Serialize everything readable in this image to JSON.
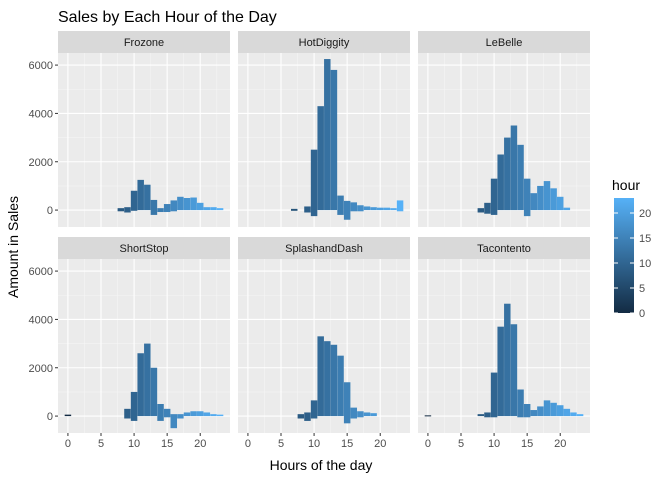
{
  "chart_data": {
    "type": "bar",
    "title": "Sales by Each Hour of the Day",
    "xlabel": "Hours of the day",
    "ylabel": "Amount in Sales",
    "xlim": [
      -1.5,
      24.5
    ],
    "ylim": [
      -700,
      6500
    ],
    "x_ticks": [
      0,
      5,
      10,
      15,
      20
    ],
    "y_ticks": [
      0,
      2000,
      4000,
      6000
    ],
    "grid": true,
    "legend": {
      "title": "hour",
      "position": "right",
      "ticks": [
        0,
        5,
        10,
        15,
        20
      ],
      "range": [
        0,
        23
      ],
      "color_low": "#132b43",
      "color_high": "#56b1f7"
    },
    "panels": [
      {
        "name": "Frozone",
        "bars": [
          {
            "x": 8,
            "ymin": -50,
            "ymax": 80
          },
          {
            "x": 9,
            "ymin": -100,
            "ymax": 120
          },
          {
            "x": 10,
            "ymin": -30,
            "ymax": 800
          },
          {
            "x": 11,
            "ymin": 0,
            "ymax": 1250
          },
          {
            "x": 12,
            "ymin": 0,
            "ymax": 1050
          },
          {
            "x": 13,
            "ymin": -200,
            "ymax": 420
          },
          {
            "x": 14,
            "ymin": -80,
            "ymax": 80
          },
          {
            "x": 15,
            "ymin": -80,
            "ymax": 250
          },
          {
            "x": 16,
            "ymin": -50,
            "ymax": 400
          },
          {
            "x": 17,
            "ymin": 0,
            "ymax": 550
          },
          {
            "x": 18,
            "ymin": 0,
            "ymax": 500
          },
          {
            "x": 19,
            "ymin": 0,
            "ymax": 520
          },
          {
            "x": 20,
            "ymin": 0,
            "ymax": 300
          },
          {
            "x": 21,
            "ymin": 0,
            "ymax": 120
          },
          {
            "x": 22,
            "ymin": 0,
            "ymax": 120
          },
          {
            "x": 23,
            "ymin": 0,
            "ymax": 80
          }
        ]
      },
      {
        "name": "HotDiggity",
        "bars": [
          {
            "x": 7,
            "ymin": -30,
            "ymax": 50
          },
          {
            "x": 9,
            "ymin": -100,
            "ymax": 150
          },
          {
            "x": 10,
            "ymin": -250,
            "ymax": 2500
          },
          {
            "x": 11,
            "ymin": 0,
            "ymax": 4300
          },
          {
            "x": 12,
            "ymin": 0,
            "ymax": 6250
          },
          {
            "x": 13,
            "ymin": 0,
            "ymax": 5800
          },
          {
            "x": 14,
            "ymin": -200,
            "ymax": 600
          },
          {
            "x": 15,
            "ymin": -400,
            "ymax": 380
          },
          {
            "x": 16,
            "ymin": -50,
            "ymax": 320
          },
          {
            "x": 17,
            "ymin": -50,
            "ymax": 200
          },
          {
            "x": 18,
            "ymin": 0,
            "ymax": 150
          },
          {
            "x": 19,
            "ymin": 0,
            "ymax": 120
          },
          {
            "x": 20,
            "ymin": 0,
            "ymax": 100
          },
          {
            "x": 21,
            "ymin": 0,
            "ymax": 100
          },
          {
            "x": 22,
            "ymin": 0,
            "ymax": 80
          },
          {
            "x": 23,
            "ymin": -50,
            "ymax": 400
          }
        ]
      },
      {
        "name": "LeBelle",
        "bars": [
          {
            "x": 8,
            "ymin": -100,
            "ymax": 80
          },
          {
            "x": 9,
            "ymin": -150,
            "ymax": 300
          },
          {
            "x": 10,
            "ymin": -200,
            "ymax": 1300
          },
          {
            "x": 11,
            "ymin": 0,
            "ymax": 2300
          },
          {
            "x": 12,
            "ymin": 0,
            "ymax": 3000
          },
          {
            "x": 13,
            "ymin": 0,
            "ymax": 3500
          },
          {
            "x": 14,
            "ymin": 0,
            "ymax": 2700
          },
          {
            "x": 15,
            "ymin": -250,
            "ymax": 1300
          },
          {
            "x": 16,
            "ymin": 0,
            "ymax": 700
          },
          {
            "x": 17,
            "ymin": 0,
            "ymax": 1000
          },
          {
            "x": 18,
            "ymin": 0,
            "ymax": 1200
          },
          {
            "x": 19,
            "ymin": 0,
            "ymax": 900
          },
          {
            "x": 20,
            "ymin": 0,
            "ymax": 550
          },
          {
            "x": 21,
            "ymin": 0,
            "ymax": 100
          }
        ]
      },
      {
        "name": "ShortStop",
        "bars": [
          {
            "x": 0,
            "ymin": 0,
            "ymax": 60
          },
          {
            "x": 9,
            "ymin": -100,
            "ymax": 300
          },
          {
            "x": 10,
            "ymin": -200,
            "ymax": 1000
          },
          {
            "x": 11,
            "ymin": 0,
            "ymax": 2600
          },
          {
            "x": 12,
            "ymin": 0,
            "ymax": 3000
          },
          {
            "x": 13,
            "ymin": 0,
            "ymax": 2000
          },
          {
            "x": 14,
            "ymin": -200,
            "ymax": 500
          },
          {
            "x": 15,
            "ymin": -50,
            "ymax": 300
          },
          {
            "x": 16,
            "ymin": -500,
            "ymax": 80
          },
          {
            "x": 17,
            "ymin": -100,
            "ymax": 80
          },
          {
            "x": 18,
            "ymin": 0,
            "ymax": 150
          },
          {
            "x": 19,
            "ymin": 0,
            "ymax": 200
          },
          {
            "x": 20,
            "ymin": 0,
            "ymax": 200
          },
          {
            "x": 21,
            "ymin": 0,
            "ymax": 150
          },
          {
            "x": 22,
            "ymin": 0,
            "ymax": 80
          },
          {
            "x": 23,
            "ymin": 0,
            "ymax": 60
          }
        ]
      },
      {
        "name": "SplashandDash",
        "bars": [
          {
            "x": 8,
            "ymin": -100,
            "ymax": 80
          },
          {
            "x": 9,
            "ymin": -200,
            "ymax": 150
          },
          {
            "x": 10,
            "ymin": -100,
            "ymax": 650
          },
          {
            "x": 11,
            "ymin": 0,
            "ymax": 3300
          },
          {
            "x": 12,
            "ymin": 0,
            "ymax": 3100
          },
          {
            "x": 13,
            "ymin": 0,
            "ymax": 2950
          },
          {
            "x": 14,
            "ymin": 0,
            "ymax": 2500
          },
          {
            "x": 15,
            "ymin": -300,
            "ymax": 1400
          },
          {
            "x": 16,
            "ymin": -100,
            "ymax": 350
          },
          {
            "x": 17,
            "ymin": -50,
            "ymax": 200
          },
          {
            "x": 18,
            "ymin": 0,
            "ymax": 150
          },
          {
            "x": 19,
            "ymin": 0,
            "ymax": 120
          }
        ]
      },
      {
        "name": "Tacontento",
        "bars": [
          {
            "x": 0,
            "ymin": 0,
            "ymax": 30
          },
          {
            "x": 8,
            "ymin": 0,
            "ymax": 80
          },
          {
            "x": 9,
            "ymin": -50,
            "ymax": 150
          },
          {
            "x": 10,
            "ymin": -50,
            "ymax": 1800
          },
          {
            "x": 11,
            "ymin": 0,
            "ymax": 3700
          },
          {
            "x": 12,
            "ymin": 0,
            "ymax": 4650
          },
          {
            "x": 13,
            "ymin": 0,
            "ymax": 3800
          },
          {
            "x": 14,
            "ymin": -50,
            "ymax": 1100
          },
          {
            "x": 15,
            "ymin": -50,
            "ymax": 500
          },
          {
            "x": 16,
            "ymin": 0,
            "ymax": 250
          },
          {
            "x": 17,
            "ymin": 0,
            "ymax": 400
          },
          {
            "x": 18,
            "ymin": 0,
            "ymax": 650
          },
          {
            "x": 19,
            "ymin": 0,
            "ymax": 550
          },
          {
            "x": 20,
            "ymin": 0,
            "ymax": 450
          },
          {
            "x": 21,
            "ymin": 0,
            "ymax": 300
          },
          {
            "x": 22,
            "ymin": 0,
            "ymax": 150
          },
          {
            "x": 23,
            "ymin": 0,
            "ymax": 80
          }
        ]
      }
    ]
  }
}
